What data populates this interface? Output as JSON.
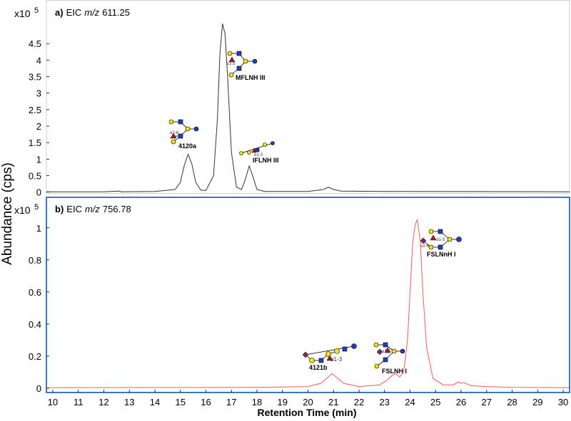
{
  "figure": {
    "ylabel": "Abundance (cps)",
    "xlabel": "Retention Time (min)"
  },
  "chart_data": [
    {
      "type": "line",
      "title_parts": [
        "a)",
        "EIC",
        "m/z",
        "611.25"
      ],
      "y_multiplier": "x10",
      "y_multiplier_exp": "5",
      "color": "#333333",
      "xlim": [
        9.75,
        30.25
      ],
      "ylim": [
        -0.05,
        5.8
      ],
      "yticks": [
        0,
        0.5,
        1,
        1.5,
        2,
        2.5,
        3,
        3.5,
        4,
        4.5
      ],
      "x": [
        9.75,
        12,
        12.6,
        12.7,
        14,
        14.8,
        15.0,
        15.15,
        15.3,
        15.45,
        15.6,
        15.8,
        16.0,
        16.3,
        16.45,
        16.55,
        16.65,
        16.75,
        16.85,
        17.0,
        17.2,
        17.4,
        17.55,
        17.7,
        17.85,
        18.0,
        18.3,
        20,
        20.6,
        20.8,
        21.0,
        21.3,
        23,
        30.25
      ],
      "values": [
        0.01,
        0.01,
        0.03,
        0.01,
        0.02,
        0.08,
        0.3,
        0.8,
        1.15,
        0.85,
        0.3,
        0.06,
        0.05,
        0.5,
        2.2,
        4.2,
        5.1,
        4.8,
        3.5,
        1.2,
        0.15,
        0.08,
        0.4,
        0.8,
        0.45,
        0.08,
        0.02,
        0.02,
        0.08,
        0.15,
        0.08,
        0.03,
        0.02,
        0.01
      ],
      "annotations": [
        "4120a",
        "MFLNH III",
        "IFLNH III"
      ],
      "linkages": [
        "α2-6",
        "α1-3",
        "α1-3"
      ]
    },
    {
      "type": "line",
      "title_parts": [
        "b)",
        "EIC",
        "m/z",
        "756.78"
      ],
      "y_multiplier": "x10",
      "y_multiplier_exp": "5",
      "color": "#f05a5a",
      "xlim": [
        9.75,
        30.25
      ],
      "ylim": [
        -0.027,
        1.19
      ],
      "yticks": [
        0,
        0.2,
        0.4,
        0.6,
        0.8,
        1
      ],
      "xticks": [
        10,
        11,
        12,
        13,
        14,
        15,
        16,
        17,
        18,
        19,
        20,
        21,
        22,
        23,
        24,
        25,
        26,
        27,
        28,
        29,
        30
      ],
      "x": [
        9.75,
        18,
        20.0,
        20.5,
        20.8,
        20.95,
        21.1,
        21.4,
        22,
        22.8,
        23.1,
        23.3,
        23.45,
        23.6,
        23.75,
        23.9,
        24.0,
        24.1,
        24.2,
        24.28,
        24.4,
        24.5,
        24.65,
        24.9,
        25.3,
        25.7,
        25.9,
        26.0,
        26.1,
        26.4,
        27,
        28,
        30.25
      ],
      "values": [
        0.003,
        0.005,
        0.01,
        0.03,
        0.07,
        0.09,
        0.07,
        0.03,
        0.01,
        0.02,
        0.05,
        0.08,
        0.09,
        0.07,
        0.1,
        0.3,
        0.6,
        0.9,
        1.02,
        1.05,
        0.92,
        0.6,
        0.25,
        0.06,
        0.02,
        0.02,
        0.04,
        0.03,
        0.035,
        0.015,
        0.01,
        0.005,
        0.003
      ],
      "annotations": [
        "4121b",
        "FSLNH I",
        "FSLNnH I"
      ],
      "linkages": [
        "α1-3",
        "α1-3",
        "α2-6",
        "α1-3"
      ]
    }
  ]
}
